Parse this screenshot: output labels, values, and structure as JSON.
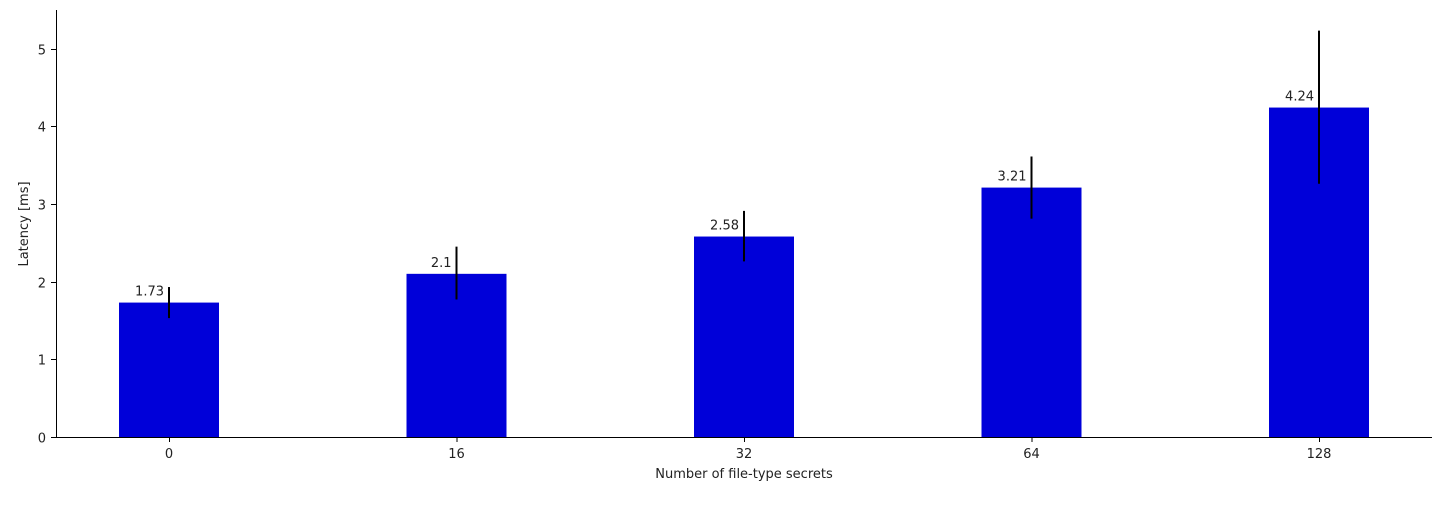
{
  "chart_data": {
    "type": "bar",
    "title": "",
    "xlabel": "Number of file-type secrets",
    "ylabel": "Latency [ms]",
    "categories": [
      "0",
      "16",
      "32",
      "64",
      "128"
    ],
    "values": [
      1.73,
      2.1,
      2.58,
      3.21,
      4.24
    ],
    "value_labels": [
      "1.73",
      "2.1",
      "2.58",
      "3.21",
      "4.24"
    ],
    "error_low": [
      1.53,
      1.77,
      2.26,
      2.81,
      3.26
    ],
    "error_high": [
      1.93,
      2.45,
      2.91,
      3.61,
      5.23
    ],
    "ylim": [
      0,
      5.5
    ],
    "yticks": [
      0,
      1,
      2,
      3,
      4,
      5
    ],
    "bar_color": "#0000d9",
    "error_color": "#000000",
    "grid": false,
    "legend": "none"
  }
}
